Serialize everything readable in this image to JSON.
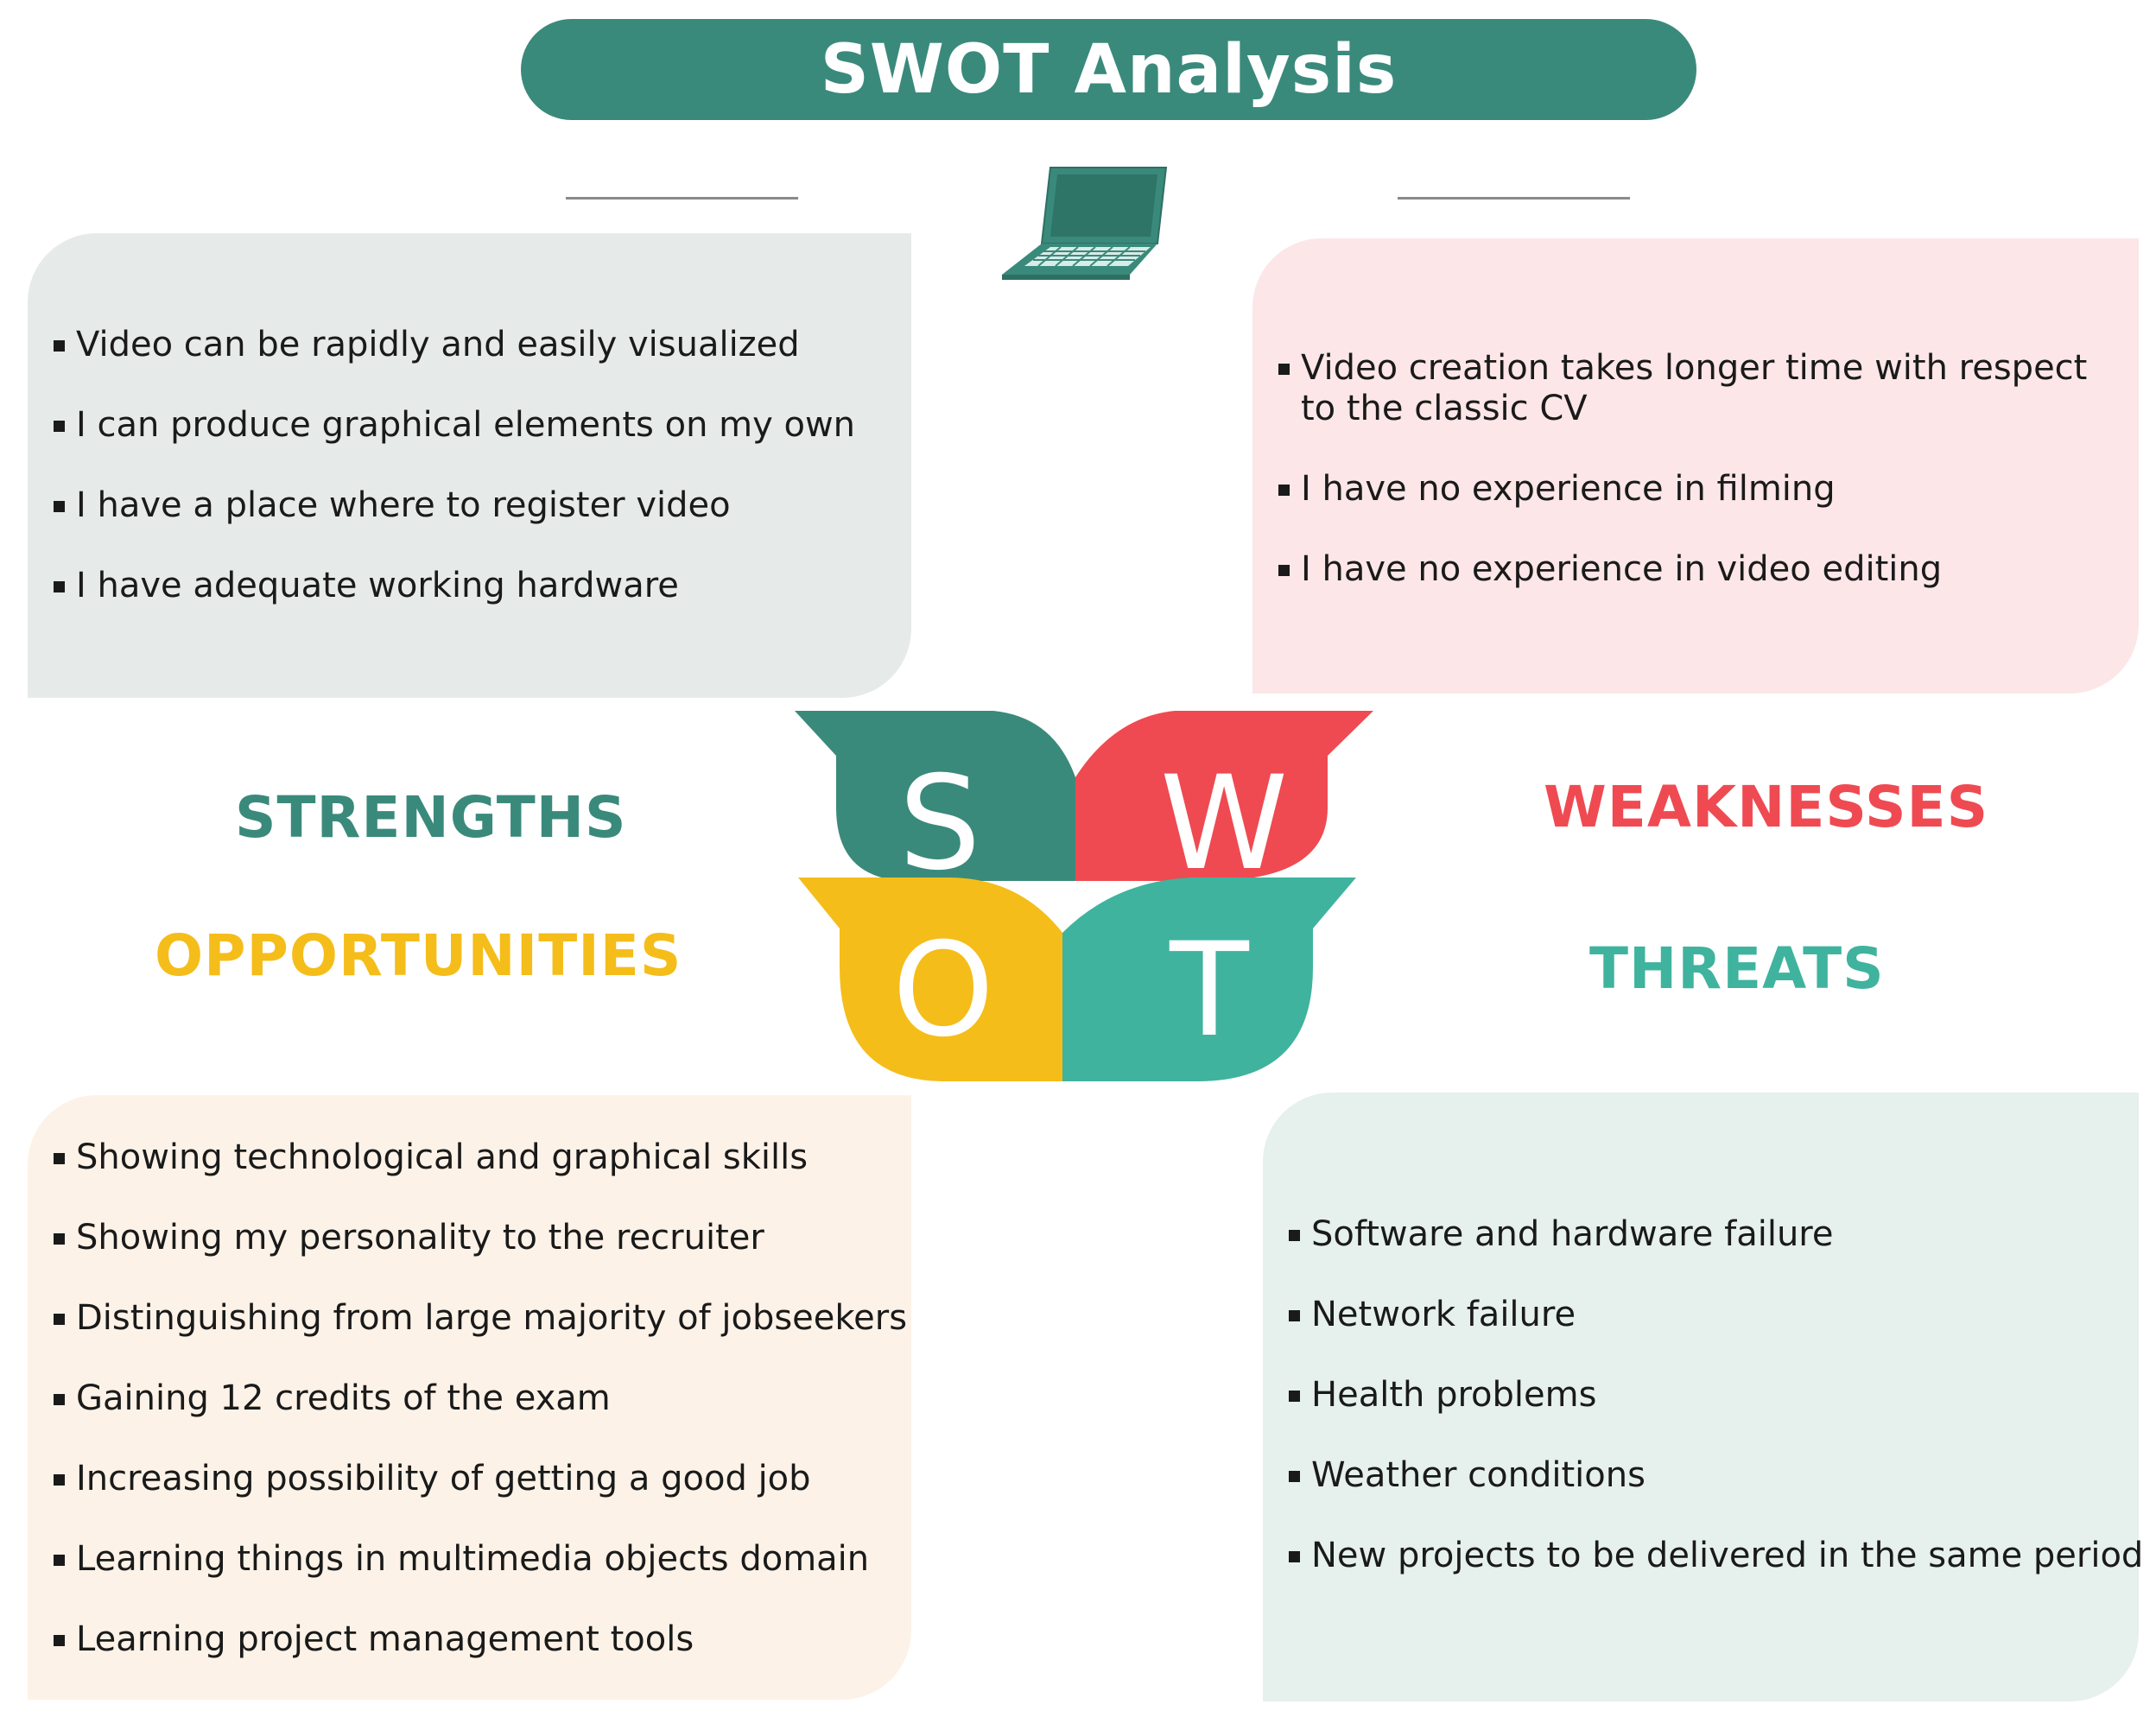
{
  "title": "SWOT Analysis",
  "icons": {
    "laptop": "laptop-icon"
  },
  "colors": {
    "teal_dark": "#3a8a7c",
    "red": "#ef4a52",
    "yellow": "#f5bd1a",
    "teal_light": "#3fb39e"
  },
  "strengths": {
    "label": "STRENGTHS",
    "letter": "S",
    "items": [
      "Video can be rapidly and easily visualized",
      "I can produce graphical elements on my own",
      "I have a place where to register video",
      "I have adequate working hardware"
    ]
  },
  "weaknesses": {
    "label": "WEAKNESSES",
    "letter": "W",
    "items": [
      "Video creation takes longer time with respect to the classic CV",
      "I have no experience in filming",
      "I have no experience in video editing"
    ]
  },
  "opportunities": {
    "label": "OPPORTUNITIES",
    "letter": "O",
    "items": [
      "Showing technological and graphical skills",
      "Showing my personality to the recruiter",
      "Distinguishing from large majority of jobseekers",
      "Gaining 12 credits of the exam",
      "Increasing possibility of getting a good job",
      "Learning things in multimedia objects domain",
      "Learning project management tools"
    ]
  },
  "threats": {
    "label": "THREATS",
    "letter": "T",
    "items": [
      "Software and hardware failure",
      "Network failure",
      "Health problems",
      "Weather conditions",
      "New projects to be delivered in the same period"
    ]
  }
}
